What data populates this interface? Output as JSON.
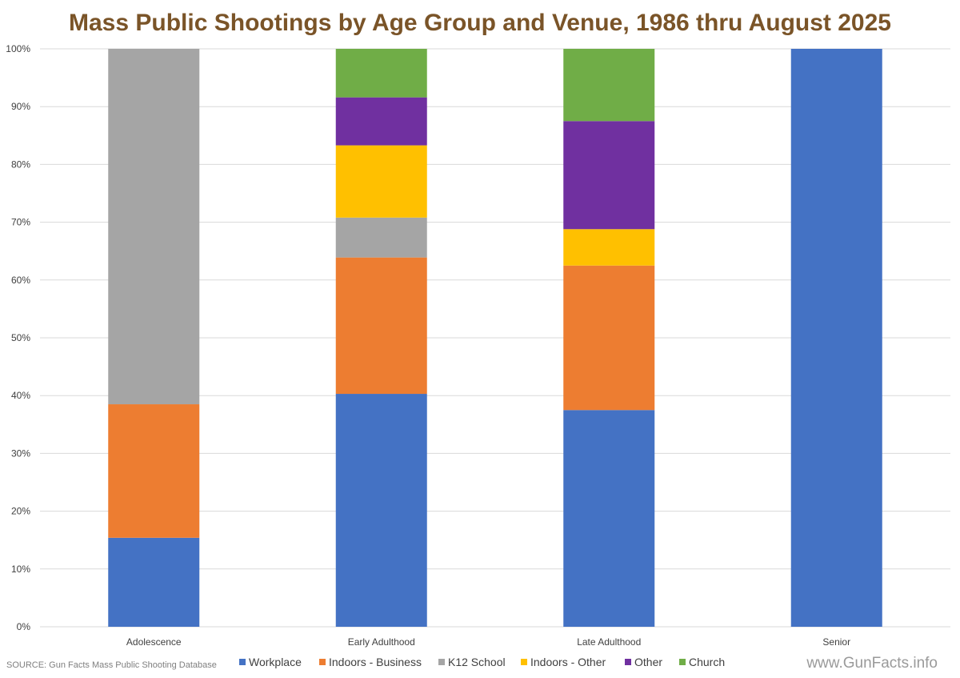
{
  "chart_data": {
    "type": "bar",
    "stacked": true,
    "title": "Mass Public Shootings by Age Group and Venue, 1986 thru August 2025",
    "xlabel": "",
    "ylabel": "",
    "ylim": [
      0,
      100
    ],
    "y_ticks": [
      "0%",
      "10%",
      "20%",
      "30%",
      "40%",
      "50%",
      "60%",
      "70%",
      "80%",
      "90%",
      "100%"
    ],
    "grid": true,
    "legend_position": "bottom",
    "categories": [
      "Adolescence",
      "Early Adulthood",
      "Late Adulthood",
      "Senior"
    ],
    "series": [
      {
        "name": "Workplace",
        "color": "#4472c4",
        "values": [
          15.4,
          40.3,
          37.5,
          100
        ]
      },
      {
        "name": "Indoors - Business",
        "color": "#ed7d31",
        "values": [
          23.1,
          23.6,
          25.0,
          0
        ]
      },
      {
        "name": "K12 School",
        "color": "#a5a5a5",
        "values": [
          61.5,
          6.9,
          0,
          0
        ]
      },
      {
        "name": "Indoors - Other",
        "color": "#ffc000",
        "values": [
          0,
          12.5,
          6.3,
          0
        ]
      },
      {
        "name": "Other",
        "color": "#7030a0",
        "values": [
          0,
          8.3,
          18.7,
          0
        ]
      },
      {
        "name": "Church",
        "color": "#70ad47",
        "values": [
          0,
          8.4,
          12.5,
          0
        ]
      }
    ]
  },
  "source_note": "SOURCE:  Gun Facts Mass Public Shooting Database",
  "watermark": "www.GunFacts.info",
  "colors": {
    "title": "#7a5428",
    "grid": "#d9d9d9",
    "axis_text": "#404040"
  }
}
